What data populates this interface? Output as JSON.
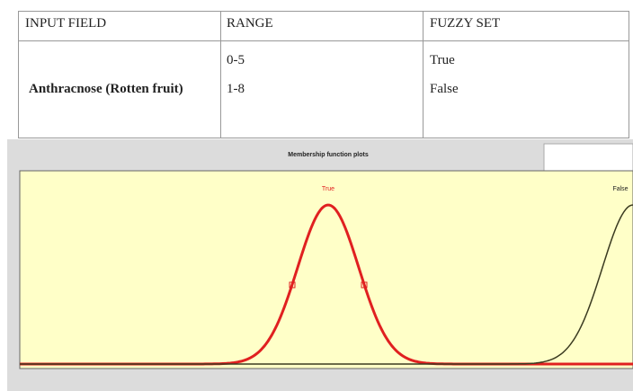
{
  "table": {
    "header": [
      "INPUT FIELD",
      "RANGE",
      "FUZZY SET"
    ],
    "input_field": "Anthracnose (Rotten fruit)",
    "ranges": [
      "0-5",
      "1-8"
    ],
    "fuzzy_sets": [
      "True",
      "False"
    ]
  },
  "plot": {
    "title": "Membership function plots",
    "curve_labels": [
      "True",
      "False"
    ]
  }
}
